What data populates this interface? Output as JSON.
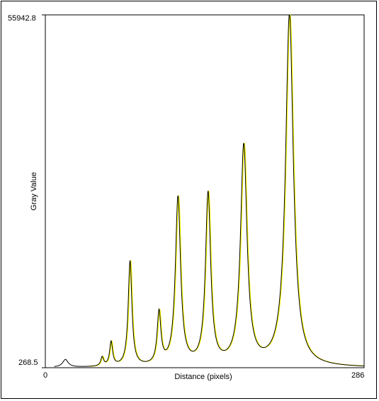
{
  "chart_data": {
    "type": "line",
    "title": "",
    "xlabel": "Distance (pixels)",
    "ylabel": "Gray Value",
    "xlim": [
      0,
      286
    ],
    "ylim": [
      268.5,
      55942.8
    ],
    "x_tick_labels": [
      "0",
      "286"
    ],
    "y_tick_labels": [
      "268.5",
      "55942.8"
    ],
    "grid": false,
    "colors": {
      "profile": "#000000",
      "fit": "#ffff00"
    },
    "peaks": [
      {
        "x": 18,
        "height": 1200,
        "width": 3.0
      },
      {
        "x": 51,
        "height": 1400,
        "width": 1.5
      },
      {
        "x": 59,
        "height": 3800,
        "width": 1.6
      },
      {
        "x": 76,
        "height": 16600,
        "width": 2.0
      },
      {
        "x": 102,
        "height": 8200,
        "width": 2.0
      },
      {
        "x": 119,
        "height": 26500,
        "width": 2.8
      },
      {
        "x": 146,
        "height": 27000,
        "width": 2.8
      },
      {
        "x": 178,
        "height": 34600,
        "width": 3.5
      },
      {
        "x": 219,
        "height": 55600,
        "width": 4.2
      }
    ]
  }
}
